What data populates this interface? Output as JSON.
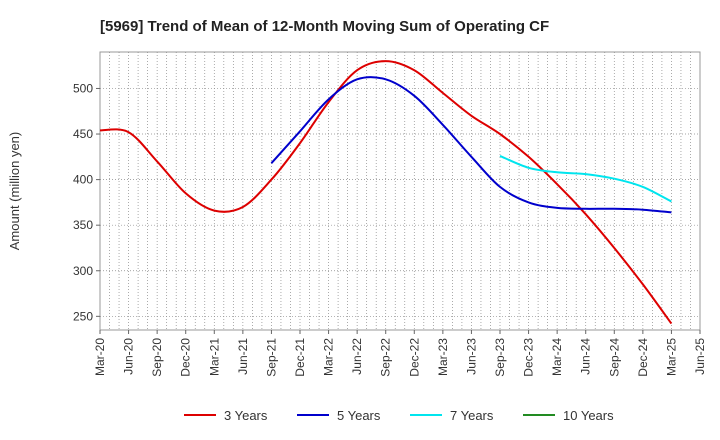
{
  "chart_data": {
    "type": "line",
    "title": "[5969]  Trend of Mean of 12-Month Moving Sum of Operating CF",
    "xlabel": "",
    "ylabel": "Amount (million yen)",
    "ylim": [
      235,
      540
    ],
    "yticks": [
      250,
      300,
      350,
      400,
      450,
      500
    ],
    "grid": true,
    "legend_position": "bottom",
    "x_ticks": [
      "Mar-20",
      "Jun-20",
      "Sep-20",
      "Dec-20",
      "Mar-21",
      "Jun-21",
      "Sep-21",
      "Dec-21",
      "Mar-22",
      "Jun-22",
      "Sep-22",
      "Dec-22",
      "Mar-23",
      "Jun-23",
      "Sep-23",
      "Dec-23",
      "Mar-24",
      "Jun-24",
      "Sep-24",
      "Dec-24",
      "Mar-25",
      "Jun-25"
    ],
    "series": [
      {
        "name": "3 Years",
        "color": "#dd0000",
        "x": [
          "Mar-20",
          "Jun-20",
          "Sep-20",
          "Dec-20",
          "Mar-21",
          "Jun-21",
          "Sep-21",
          "Dec-21",
          "Mar-22",
          "Jun-22",
          "Sep-22",
          "Dec-22",
          "Mar-23",
          "Jun-23",
          "Sep-23",
          "Dec-23",
          "Mar-24",
          "Jun-24",
          "Sep-24",
          "Dec-24",
          "Mar-25"
        ],
        "values": [
          454,
          452,
          420,
          385,
          366,
          370,
          400,
          440,
          485,
          520,
          530,
          520,
          495,
          470,
          450,
          425,
          395,
          362,
          325,
          285,
          242
        ]
      },
      {
        "name": "5 Years",
        "color": "#0000cc",
        "x": [
          "Sep-21",
          "Dec-21",
          "Mar-22",
          "Jun-22",
          "Sep-22",
          "Dec-22",
          "Mar-23",
          "Jun-23",
          "Sep-23",
          "Dec-23",
          "Mar-24",
          "Jun-24",
          "Sep-24",
          "Dec-24",
          "Mar-25"
        ],
        "values": [
          418,
          453,
          488,
          510,
          510,
          492,
          460,
          425,
          392,
          375,
          369,
          368,
          368,
          367,
          364
        ]
      },
      {
        "name": "7 Years",
        "color": "#00e5ee",
        "x": [
          "Sep-23",
          "Dec-23",
          "Mar-24",
          "Jun-24",
          "Sep-24",
          "Dec-24",
          "Mar-25"
        ],
        "values": [
          426,
          413,
          408,
          406,
          401,
          392,
          376
        ]
      },
      {
        "name": "10 Years",
        "color": "#228b22",
        "x": [],
        "values": []
      }
    ]
  }
}
